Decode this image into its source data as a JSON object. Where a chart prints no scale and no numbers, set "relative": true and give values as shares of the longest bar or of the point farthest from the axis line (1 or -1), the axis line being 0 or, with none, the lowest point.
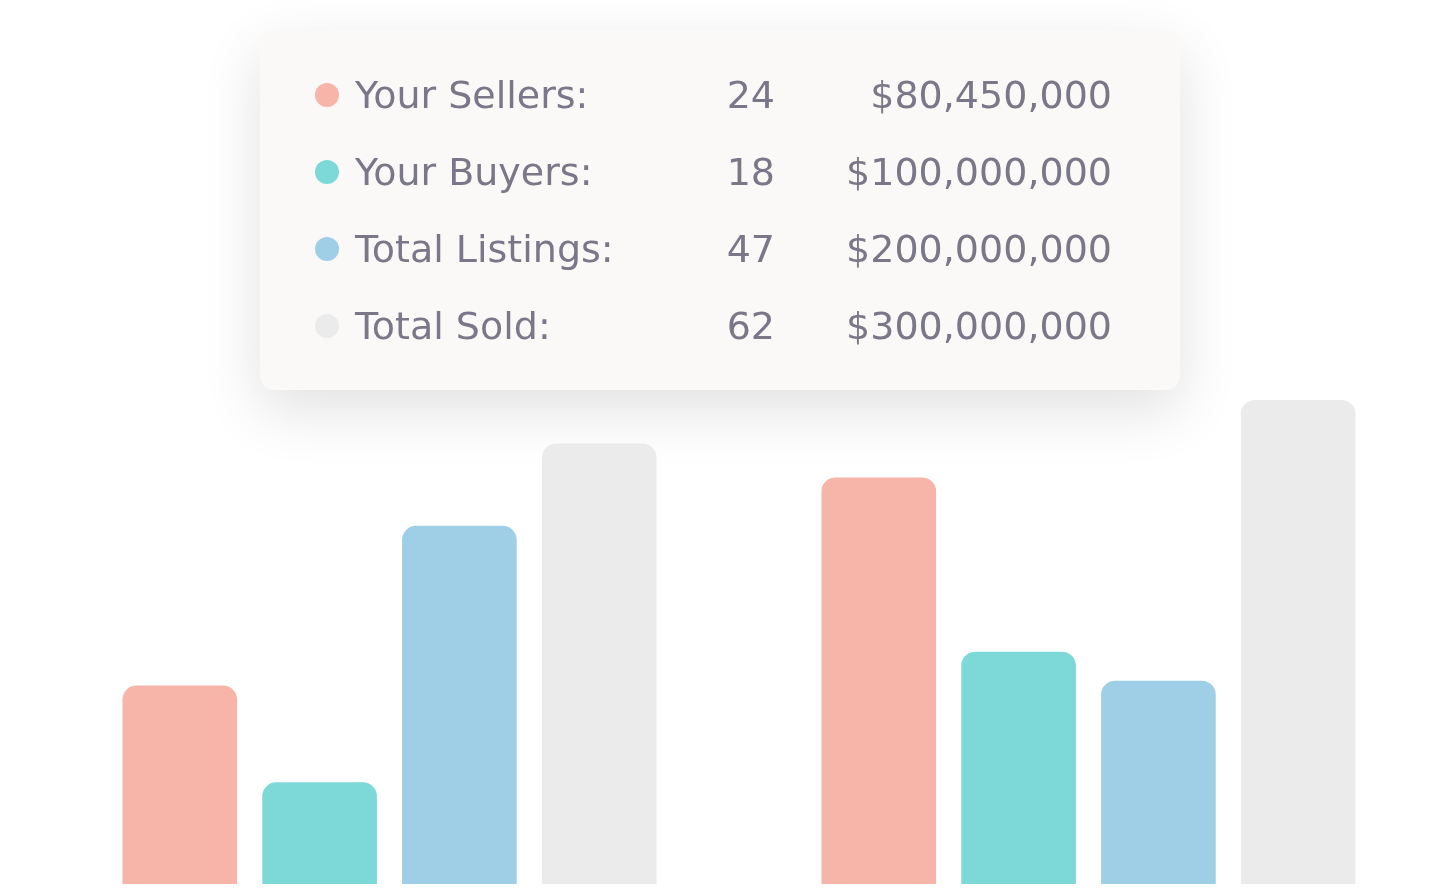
{
  "chart_data": {
    "type": "bar",
    "relative": true,
    "categories": [
      null,
      null
    ],
    "legend": "top",
    "series": [
      {
        "name": "Your Sellers:",
        "color": "#f7b5aa",
        "values": [
          0.41,
          0.84
        ]
      },
      {
        "name": "Your Buyers:",
        "color": "#7dd8d8",
        "values": [
          0.21,
          0.48
        ]
      },
      {
        "name": "Total Listings:",
        "color": "#9ecfe6",
        "values": [
          0.74,
          0.42
        ]
      },
      {
        "name": "Total Sold:",
        "color": "#ebebeb",
        "values": [
          0.91,
          1
        ]
      }
    ],
    "annotations": [
      "24",
      "$80,450,000",
      "18",
      "$100,000,000",
      "47",
      "$200,000,000",
      "62",
      "$300,000,000"
    ]
  }
}
